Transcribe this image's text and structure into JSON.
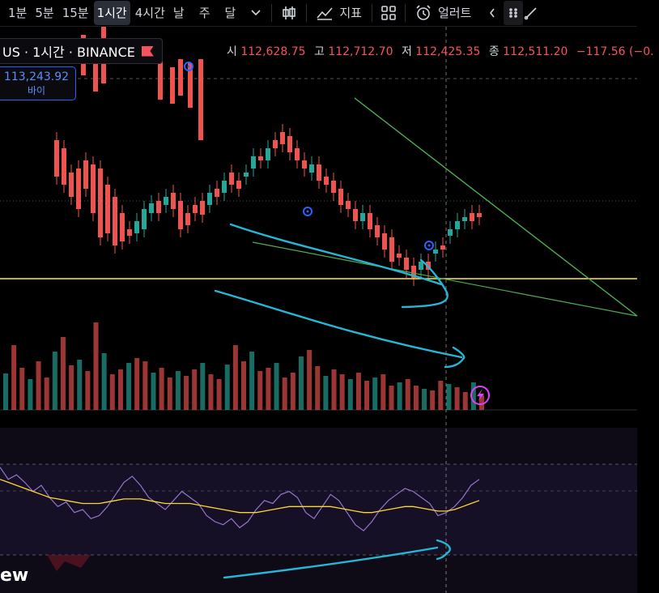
{
  "toolbar": {
    "timeframes": [
      "1분",
      "5분",
      "15분",
      "1시간",
      "4시간",
      "날",
      "주",
      "달"
    ],
    "active_timeframe": "1시간",
    "indicators_label": "지표",
    "alerts_label": "얼러트"
  },
  "symbol": {
    "label": "US · 1시간 · BINANCE"
  },
  "ohlc": {
    "open_label": "시",
    "open": "112,628.75",
    "high_label": "고",
    "high": "112,712.70",
    "low_label": "저",
    "low": "112,425.35",
    "close_label": "종",
    "close": "112,511.20",
    "change": "−117.56 (−0."
  },
  "order": {
    "price": "113,243.92",
    "label": "바이"
  },
  "brand": {
    "logo_text": "ew"
  },
  "colors": {
    "up": "#26a69a",
    "down": "#ef5350",
    "background": "#000000",
    "support_line": "#ffeb3b",
    "trend_line": "#4caf50",
    "drawing": "#26b6d6",
    "rsi_line": "#9575cd",
    "rsi_ma": "#fdd835"
  },
  "chart_data": {
    "type": "candlestick",
    "panes": [
      "price",
      "volume",
      "rsi"
    ],
    "candles": [
      [
        140,
        185
      ],
      [
        150,
        195
      ],
      [
        180,
        210
      ],
      [
        175,
        225
      ],
      [
        165,
        200
      ],
      [
        170,
        230
      ],
      [
        175,
        260
      ],
      [
        195,
        255
      ],
      [
        210,
        270
      ],
      [
        230,
        265
      ],
      [
        250,
        258
      ],
      [
        255,
        240
      ],
      [
        250,
        225
      ],
      [
        230,
        218
      ],
      [
        215,
        230
      ],
      [
        220,
        210
      ],
      [
        205,
        225
      ],
      [
        215,
        250
      ],
      [
        230,
        245
      ],
      [
        220,
        230
      ],
      [
        215,
        232
      ],
      [
        220,
        205
      ],
      [
        200,
        210
      ],
      [
        205,
        190
      ],
      [
        180,
        195
      ],
      [
        190,
        200
      ],
      [
        185,
        180
      ],
      [
        175,
        160
      ],
      [
        160,
        165
      ],
      [
        165,
        150
      ],
      [
        140,
        150
      ],
      [
        130,
        145
      ],
      [
        135,
        155
      ],
      [
        150,
        165
      ],
      [
        165,
        175
      ],
      [
        180,
        170
      ],
      [
        170,
        190
      ],
      [
        185,
        195
      ],
      [
        190,
        205
      ],
      [
        200,
        220
      ],
      [
        215,
        225
      ],
      [
        225,
        240
      ],
      [
        240,
        230
      ],
      [
        230,
        250
      ],
      [
        245,
        260
      ],
      [
        255,
        275
      ],
      [
        260,
        290
      ],
      [
        280,
        285
      ],
      [
        285,
        300
      ],
      [
        295,
        310
      ],
      [
        300,
        290
      ],
      [
        290,
        300
      ],
      [
        280,
        275
      ],
      [
        270,
        275
      ],
      [
        258,
        250
      ],
      [
        250,
        240
      ],
      [
        240,
        235
      ],
      [
        230,
        240
      ],
      [
        230,
        235
      ]
    ],
    "volume": [
      45,
      80,
      52,
      38,
      60,
      40,
      72,
      90,
      55,
      62,
      48,
      108,
      70,
      44,
      50,
      58,
      64,
      60,
      46,
      52,
      40,
      48,
      42,
      50,
      58,
      44,
      38,
      56,
      80,
      60,
      72,
      48,
      52,
      58,
      40,
      46,
      66,
      74,
      54,
      42,
      50,
      44,
      38,
      46,
      36,
      40,
      44,
      30,
      34,
      38,
      30,
      26,
      24,
      36,
      32,
      28,
      22,
      34,
      18
    ],
    "rsi": [
      78,
      70,
      73,
      68,
      62,
      66,
      58,
      52,
      55,
      48,
      50,
      44,
      46,
      52,
      60,
      68,
      72,
      66,
      58,
      54,
      50,
      56,
      62,
      58,
      54,
      46,
      42,
      40,
      44,
      38,
      42,
      50,
      56,
      54,
      60,
      62,
      58,
      48,
      44,
      52,
      60,
      56,
      48,
      40,
      36,
      42,
      50,
      56,
      60,
      64,
      62,
      58,
      54,
      46,
      48,
      52,
      58,
      66,
      70
    ],
    "rsi_ma": [
      70,
      68,
      66,
      64,
      62,
      60,
      58,
      57,
      56,
      55,
      54,
      54,
      54,
      55,
      56,
      57,
      57,
      57,
      56,
      55,
      54,
      54,
      54,
      54,
      53,
      52,
      51,
      50,
      49,
      48,
      48,
      48,
      49,
      50,
      51,
      52,
      52,
      52,
      52,
      52,
      52,
      51,
      50,
      49,
      48,
      48,
      49,
      50,
      51,
      52,
      52,
      51,
      50,
      49,
      49,
      50,
      52,
      54,
      56
    ],
    "support_level_y_ratio": 0.5
  }
}
